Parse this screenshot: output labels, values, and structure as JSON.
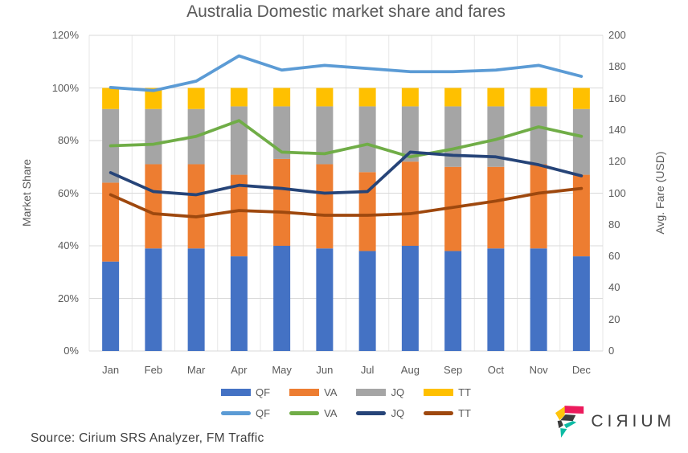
{
  "title": "Australia Domestic market share and fares",
  "source": "Source: Cirium SRS Analyzer, FM Traffic",
  "logo": {
    "wordmark": "CIЯIUM",
    "colors": {
      "pink": "#EC1A5C",
      "yellow": "#FFC40C",
      "teal": "#0DBBA4",
      "dark": "#3B3B3B",
      "text": "#3F3F3F"
    }
  },
  "colors": {
    "text": "#595959",
    "gridline_horizontal": "#D9D9D9",
    "gridline_vertical": "#E7E7E7",
    "background": "#FFFFFF"
  },
  "chart_data": {
    "type": "combo",
    "subtype": "stacked-bar + line",
    "categories": [
      "Jan",
      "Feb",
      "Mar",
      "Apr",
      "May",
      "Jun",
      "Jul",
      "Aug",
      "Sep",
      "Oct",
      "Nov",
      "Dec"
    ],
    "bar_series": [
      {
        "name": "QF",
        "type": "bar-stacked",
        "axis": "left",
        "unit": "%",
        "color": "#4472C4",
        "values": [
          34,
          39,
          39,
          36,
          40,
          39,
          38,
          40,
          38,
          39,
          39,
          36
        ]
      },
      {
        "name": "VA",
        "type": "bar-stacked",
        "axis": "left",
        "unit": "%",
        "color": "#ED7D31",
        "values": [
          30,
          32,
          32,
          31,
          33,
          32,
          30,
          32,
          32,
          31,
          32,
          31
        ]
      },
      {
        "name": "JQ",
        "type": "bar-stacked",
        "axis": "left",
        "unit": "%",
        "color": "#A5A5A5",
        "values": [
          28,
          21,
          21,
          26,
          20,
          22,
          25,
          21,
          23,
          23,
          22,
          25
        ]
      },
      {
        "name": "TT",
        "type": "bar-stacked",
        "axis": "left",
        "unit": "%",
        "color": "#FFC000",
        "values": [
          8,
          8,
          8,
          7,
          7,
          7,
          7,
          7,
          7,
          7,
          7,
          8
        ]
      }
    ],
    "line_series": [
      {
        "name": "QF",
        "type": "line",
        "axis": "right",
        "unit": "USD",
        "color": "#5B9BD5",
        "values": [
          167,
          165,
          171,
          187,
          178,
          181,
          179,
          177,
          177,
          178,
          181,
          174
        ]
      },
      {
        "name": "VA",
        "type": "line",
        "axis": "right",
        "unit": "USD",
        "color": "#70AD47",
        "values": [
          130,
          131,
          136,
          146,
          126,
          125,
          131,
          123,
          128,
          134,
          142,
          136
        ]
      },
      {
        "name": "JQ",
        "type": "line",
        "axis": "right",
        "unit": "USD",
        "color": "#264478",
        "values": [
          113,
          101,
          99,
          105,
          103,
          100,
          101,
          126,
          124,
          123,
          118,
          111
        ]
      },
      {
        "name": "TT",
        "type": "line",
        "axis": "right",
        "unit": "USD",
        "color": "#9E480E",
        "values": [
          99,
          87,
          85,
          89,
          88,
          86,
          86,
          87,
          91,
          95,
          100,
          103
        ]
      }
    ],
    "left_axis": {
      "title": "Market Share",
      "min": 0,
      "max": 120,
      "ticks": [
        "0%",
        "20%",
        "40%",
        "60%",
        "80%",
        "100%",
        "120%"
      ]
    },
    "right_axis": {
      "title": "Avg. Fare (USD)",
      "min": 0,
      "max": 200,
      "ticks": [
        "0",
        "20",
        "40",
        "60",
        "80",
        "100",
        "120",
        "140",
        "160",
        "180",
        "200"
      ]
    },
    "grid": {
      "horizontal": true,
      "vertical": true
    },
    "legend_position": "bottom",
    "legend": {
      "bars": [
        "QF",
        "VA",
        "JQ",
        "TT"
      ],
      "lines": [
        "QF",
        "VA",
        "JQ",
        "TT"
      ]
    }
  }
}
